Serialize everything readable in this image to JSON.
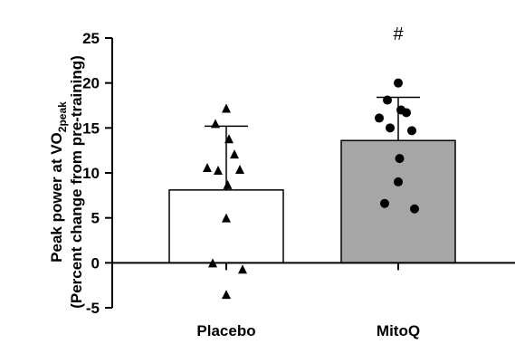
{
  "chart_data": {
    "type": "bar",
    "categories": [
      "Placebo",
      "MitoQ"
    ],
    "series": [
      {
        "values": [
          8.1,
          13.6
        ],
        "error": [
          7.1,
          4.8
        ],
        "fill_colors": [
          "#ffffff",
          "#a6a6a6"
        ],
        "points": [
          [
            17.2,
            15.5,
            13.8,
            12.1,
            10.6,
            10.3,
            10.4,
            8.7,
            5.0,
            0.0,
            -0.7,
            -3.5
          ],
          [
            20.0,
            18.1,
            17.0,
            16.7,
            16.1,
            15.0,
            14.7,
            11.6,
            9.0,
            6.6,
            6.0
          ]
        ],
        "point_markers": [
          "triangle",
          "circle"
        ]
      }
    ],
    "ylabel_line1": "Peak power at VO",
    "ylabel_sub": "2peak",
    "ylabel_line2": "(Percent change from pre-training)",
    "ylim": [
      -5,
      25
    ],
    "yticks": [
      -5,
      0,
      5,
      10,
      15,
      20,
      25
    ],
    "ytick_labels": [
      "-5",
      "0",
      "5",
      "10",
      "15",
      "20",
      "25"
    ],
    "annotations": [
      {
        "category": "MitoQ",
        "text": "#"
      }
    ],
    "grid": false,
    "legend": "none"
  }
}
